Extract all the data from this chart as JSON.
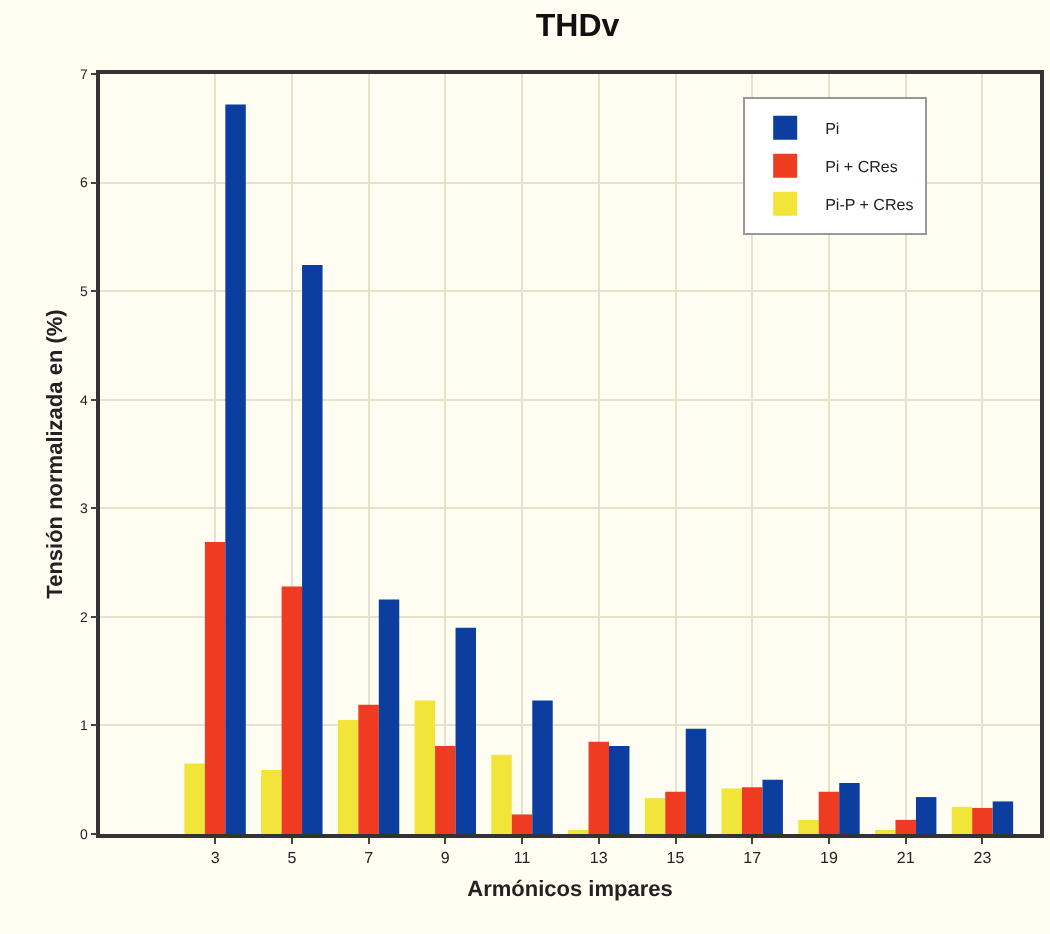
{
  "chart_data": {
    "type": "bar",
    "title": "THDv",
    "xlabel": "Armónicos impares",
    "ylabel": "Tensión normalizada en (%)",
    "x": [
      3,
      5,
      7,
      9,
      11,
      13,
      15,
      17,
      19,
      21,
      23
    ],
    "series": [
      {
        "name": "Pi-P + CRes",
        "color": "#f2e53a",
        "values": [
          0.65,
          0.59,
          1.05,
          1.23,
          0.73,
          0.02,
          0.33,
          0.42,
          0.13,
          0.02,
          0.25
        ]
      },
      {
        "name": "Pi + CRes",
        "color": "#ee3b22",
        "values": [
          2.69,
          2.28,
          1.19,
          0.81,
          0.18,
          0.85,
          0.39,
          0.43,
          0.39,
          0.13,
          0.24
        ]
      },
      {
        "name": "Pi",
        "color": "#0b3e9e",
        "values": [
          6.72,
          5.24,
          2.16,
          1.9,
          1.23,
          0.81,
          0.97,
          0.5,
          0.47,
          0.34,
          0.3
        ]
      }
    ],
    "xlim": [
      0,
      24.5
    ],
    "xticks": [
      3,
      5,
      7,
      9,
      11,
      13,
      15,
      17,
      19,
      21,
      23
    ],
    "ylim": [
      0,
      7
    ],
    "yticks": [
      0,
      1,
      2,
      3,
      4,
      5,
      6,
      7
    ],
    "grid": true,
    "legend": "top right"
  }
}
